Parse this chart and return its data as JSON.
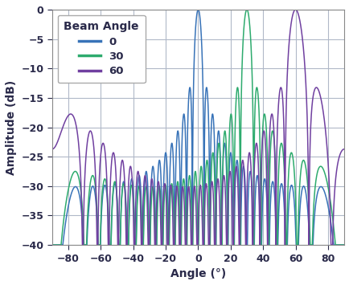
{
  "title": "",
  "xlabel": "Angle (°)",
  "ylabel": "Amplitude (dB)",
  "xlim": [
    -90,
    90
  ],
  "ylim": [
    -40,
    0
  ],
  "xticks": [
    -80,
    -60,
    -40,
    -20,
    0,
    20,
    40,
    60,
    80
  ],
  "yticks": [
    0,
    -5,
    -10,
    -15,
    -20,
    -25,
    -30,
    -35,
    -40
  ],
  "N": 32,
  "d_over_lambda": 0.5,
  "beam_angles": [
    0,
    30,
    60
  ],
  "colors": [
    "#3873b8",
    "#2eab6e",
    "#7040a0"
  ],
  "legend_title": "Beam Angle",
  "legend_labels": [
    "0",
    "30",
    "60"
  ],
  "figsize": [
    4.35,
    3.55
  ],
  "dpi": 100,
  "grid_color": "#b0b8c8",
  "floor_dB": -40,
  "bg_color": "#ffffff",
  "tick_color": "#2a2a4a",
  "label_color": "#2a2a4a",
  "spine_color": "#888888"
}
